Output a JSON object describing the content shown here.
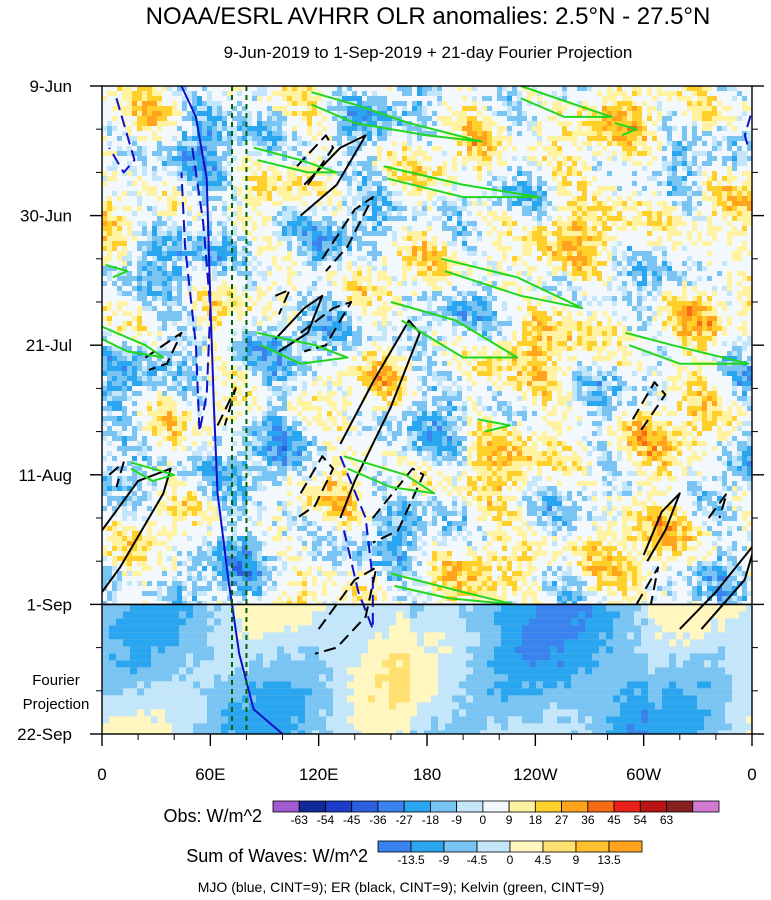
{
  "chart_data": {
    "type": "heatmap",
    "title": "NOAA/ESRL AVHRR OLR anomalies: 2.5°N - 27.5°N",
    "subtitle": "9-Jun-2019 to 1-Sep-2019 + 21-day Fourier Projection",
    "x_tick_labels": [
      "0",
      "60E",
      "120E",
      "180",
      "120W",
      "60W",
      "0"
    ],
    "x_tick_lon": [
      0,
      60,
      120,
      180,
      240,
      300,
      360
    ],
    "y_tick_labels": [
      "9-Jun",
      "30-Jun",
      "21-Jul",
      "11-Aug",
      "1-Sep",
      "22-Sep"
    ],
    "y_tick_day": [
      0,
      21,
      42,
      63,
      84,
      105
    ],
    "observation_end_day": 84,
    "projection_label": [
      "Fourier",
      "Projection"
    ],
    "vertical_dashed_lines_lon": [
      72,
      80
    ],
    "colorbar_obs": {
      "label": "Obs: W/m^2",
      "levels": [
        -63,
        -54,
        -45,
        -36,
        -27,
        -18,
        -9,
        0,
        9,
        18,
        27,
        36,
        45,
        54,
        63
      ],
      "colors": [
        "#a05ad2",
        "#102a98",
        "#1c3cc8",
        "#2c5ee0",
        "#3a82ee",
        "#2aa6f0",
        "#7ac4f4",
        "#c4e6fa",
        "#f2f8fc",
        "#fff2a0",
        "#ffd02c",
        "#ffa41c",
        "#f76b14",
        "#e8221a",
        "#bb1414",
        "#872020",
        "#d27ad2"
      ]
    },
    "colorbar_waves": {
      "label": "Sum of Waves: W/m^2",
      "levels": [
        -13.5,
        -9,
        -4.5,
        0,
        4.5,
        9,
        13.5
      ],
      "colors": [
        "#3a82ee",
        "#2aa6f0",
        "#7ac4f4",
        "#c4e6fa",
        "#fff6c0",
        "#ffe070",
        "#ffc030",
        "#ffa41c"
      ]
    },
    "contour_caption": "MJO (blue, CINT=9); ER (black, CINT=9); Kelvin (green, CINT=9)",
    "series": [
      {
        "name": "MJO",
        "color": "#1010c8",
        "contours": [
          {
            "dash": false,
            "pts": [
              [
                44,
                0
              ],
              [
                52,
                5
              ],
              [
                58,
                15
              ],
              [
                60,
                35
              ],
              [
                62,
                52
              ],
              [
                64,
                66
              ],
              [
                70,
                80
              ],
              [
                76,
                92
              ],
              [
                84,
                101
              ],
              [
                100,
                105
              ]
            ]
          },
          {
            "dash": true,
            "pts": [
              [
                8,
                2
              ],
              [
                14,
                8
              ],
              [
                18,
                12
              ],
              [
                12,
                14
              ],
              [
                4,
                10
              ]
            ]
          },
          {
            "dash": true,
            "pts": [
              [
                50,
                10
              ],
              [
                56,
                22
              ],
              [
                60,
                36
              ],
              [
                58,
                50
              ],
              [
                54,
                56
              ],
              [
                52,
                42
              ],
              [
                46,
                26
              ],
              [
                44,
                14
              ]
            ]
          },
          {
            "dash": true,
            "pts": [
              [
                132,
                60
              ],
              [
                146,
                70
              ],
              [
                150,
                80
              ],
              [
                150,
                88
              ],
              [
                142,
                82
              ],
              [
                134,
                72
              ]
            ]
          },
          {
            "dash": true,
            "pts": [
              [
                362,
                2
              ],
              [
                356,
                8
              ],
              [
                358,
                10
              ]
            ]
          }
        ]
      },
      {
        "name": "ER",
        "color": "#000000",
        "contours": [
          {
            "dash": false,
            "pts": [
              [
                0,
                72
              ],
              [
                20,
                64
              ],
              [
                38,
                62
              ],
              [
                34,
                66
              ],
              [
                10,
                78
              ],
              [
                0,
                82
              ]
            ]
          },
          {
            "dash": false,
            "pts": [
              [
                112,
                16
              ],
              [
                132,
                10
              ],
              [
                146,
                8
              ],
              [
                130,
                16
              ],
              [
                110,
                21
              ]
            ]
          },
          {
            "dash": false,
            "pts": [
              [
                96,
                41
              ],
              [
                112,
                36
              ],
              [
                122,
                34
              ],
              [
                114,
                40
              ],
              [
                98,
                43
              ]
            ]
          },
          {
            "dash": false,
            "pts": [
              [
                132,
                58
              ],
              [
                150,
                48
              ],
              [
                170,
                38
              ],
              [
                176,
                40
              ],
              [
                160,
                52
              ],
              [
                140,
                64
              ],
              [
                132,
                70
              ]
            ]
          },
          {
            "dash": false,
            "pts": [
              [
                300,
                76
              ],
              [
                310,
                69
              ],
              [
                320,
                66
              ],
              [
                312,
                72
              ],
              [
                302,
                77
              ]
            ]
          },
          {
            "dash": false,
            "pts": [
              [
                320,
                88
              ],
              [
                340,
                82
              ],
              [
                362,
                74
              ],
              [
                356,
                80
              ],
              [
                332,
                88
              ]
            ]
          },
          {
            "dash": true,
            "pts": [
              [
                108,
                13
              ],
              [
                124,
                8
              ],
              [
                128,
                10
              ],
              [
                114,
                16
              ]
            ]
          },
          {
            "dash": true,
            "pts": [
              [
                122,
                28
              ],
              [
                140,
                20
              ],
              [
                150,
                18
              ],
              [
                136,
                26
              ],
              [
                124,
                30
              ]
            ]
          },
          {
            "dash": true,
            "pts": [
              [
                110,
                40
              ],
              [
                128,
                36
              ],
              [
                138,
                35
              ],
              [
                124,
                42
              ],
              [
                112,
                43
              ]
            ]
          },
          {
            "dash": true,
            "pts": [
              [
                110,
                66
              ],
              [
                122,
                60
              ],
              [
                128,
                62
              ],
              [
                118,
                68
              ],
              [
                108,
                70
              ]
            ]
          },
          {
            "dash": true,
            "pts": [
              [
                150,
                70
              ],
              [
                172,
                62
              ],
              [
                178,
                63
              ],
              [
                164,
                72
              ],
              [
                150,
                74
              ]
            ]
          },
          {
            "dash": true,
            "pts": [
              [
                120,
                88
              ],
              [
                140,
                80
              ],
              [
                152,
                78
              ],
              [
                146,
                86
              ],
              [
                130,
                91
              ],
              [
                118,
                92
              ]
            ]
          },
          {
            "dash": true,
            "pts": [
              [
                294,
                54
              ],
              [
                306,
                48
              ],
              [
                312,
                50
              ],
              [
                298,
                56
              ]
            ]
          },
          {
            "dash": true,
            "pts": [
              [
                336,
                70
              ],
              [
                346,
                66
              ],
              [
                342,
                70
              ]
            ]
          },
          {
            "dash": true,
            "pts": [
              [
                296,
                84
              ],
              [
                308,
                78
              ],
              [
                304,
                84
              ]
            ]
          },
          {
            "dash": true,
            "pts": [
              [
                4,
                63
              ],
              [
                12,
                61
              ],
              [
                8,
                65
              ]
            ]
          },
          {
            "dash": true,
            "pts": [
              [
                24,
                44
              ],
              [
                44,
                40
              ],
              [
                36,
                45
              ],
              [
                26,
                46
              ]
            ]
          },
          {
            "dash": true,
            "pts": [
              [
                96,
                34
              ],
              [
                104,
                33
              ],
              [
                98,
                37
              ]
            ]
          },
          {
            "dash": true,
            "pts": [
              [
                64,
                55
              ],
              [
                74,
                49
              ],
              [
                68,
                55
              ]
            ]
          }
        ]
      },
      {
        "name": "Kelvin",
        "color": "#22d61e",
        "contours": [
          {
            "dash": false,
            "pts": [
              [
                116,
                1
              ],
              [
                140,
                3
              ],
              [
                170,
                6
              ],
              [
                210,
                9
              ],
              [
                180,
                8
              ],
              [
                140,
                6
              ],
              [
                116,
                3
              ]
            ]
          },
          {
            "dash": false,
            "pts": [
              [
                232,
                0
              ],
              [
                262,
                3
              ],
              [
                282,
                5
              ],
              [
                256,
                5
              ],
              [
                232,
                2
              ]
            ]
          },
          {
            "dash": false,
            "pts": [
              [
                84,
                10
              ],
              [
                110,
                12
              ],
              [
                130,
                14
              ],
              [
                114,
                14
              ],
              [
                86,
                12
              ]
            ]
          },
          {
            "dash": false,
            "pts": [
              [
                156,
                13
              ],
              [
                200,
                16
              ],
              [
                242,
                18
              ],
              [
                200,
                18
              ],
              [
                158,
                15
              ]
            ]
          },
          {
            "dash": false,
            "pts": [
              [
                188,
                28
              ],
              [
                230,
                31
              ],
              [
                266,
                36
              ],
              [
                232,
                34
              ],
              [
                190,
                30
              ]
            ]
          },
          {
            "dash": false,
            "pts": [
              [
                160,
                35
              ],
              [
                196,
                38
              ],
              [
                230,
                44
              ],
              [
                200,
                44
              ],
              [
                166,
                38
              ]
            ]
          },
          {
            "dash": false,
            "pts": [
              [
                86,
                40
              ],
              [
                118,
                42
              ],
              [
                136,
                44
              ],
              [
                110,
                45
              ],
              [
                88,
                42
              ]
            ]
          },
          {
            "dash": false,
            "pts": [
              [
                0,
                39
              ],
              [
                24,
                42
              ],
              [
                34,
                44
              ],
              [
                14,
                43
              ],
              [
                0,
                41
              ]
            ]
          },
          {
            "dash": false,
            "pts": [
              [
                134,
                60
              ],
              [
                168,
                63
              ],
              [
                184,
                66
              ],
              [
                160,
                65
              ],
              [
                136,
                62
              ]
            ]
          },
          {
            "dash": false,
            "pts": [
              [
                160,
                79
              ],
              [
                200,
                82
              ],
              [
                228,
                84
              ],
              [
                192,
                83
              ],
              [
                162,
                81
              ]
            ]
          },
          {
            "dash": false,
            "pts": [
              [
                290,
                40
              ],
              [
                316,
                42
              ],
              [
                358,
                45
              ],
              [
                320,
                45
              ],
              [
                292,
                42
              ]
            ]
          },
          {
            "dash": false,
            "pts": [
              [
                2,
                29
              ],
              [
                14,
                30
              ],
              [
                6,
                31
              ]
            ]
          },
          {
            "dash": false,
            "pts": [
              [
                16,
                61
              ],
              [
                40,
                63
              ],
              [
                28,
                64
              ],
              [
                16,
                62
              ]
            ]
          },
          {
            "dash": false,
            "pts": [
              [
                284,
                6
              ],
              [
                296,
                7
              ],
              [
                288,
                8
              ]
            ]
          },
          {
            "dash": false,
            "pts": [
              [
                208,
                54
              ],
              [
                226,
                55
              ],
              [
                212,
                56
              ]
            ]
          }
        ]
      }
    ]
  }
}
